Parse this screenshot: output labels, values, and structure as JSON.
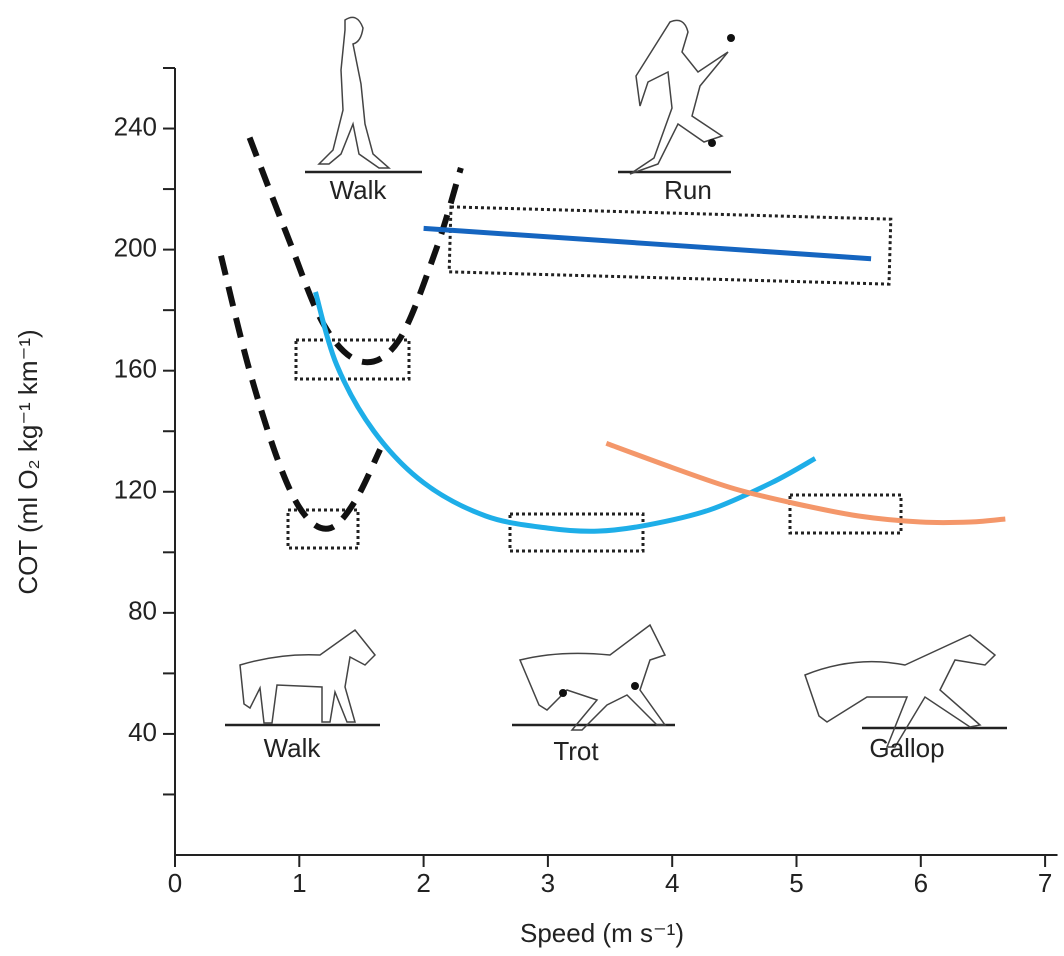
{
  "chart_data": {
    "type": "line",
    "x_label": "Speed  (m s⁻¹)",
    "y_label": "COT (ml O₂ kg⁻¹ km⁻¹)",
    "xlim": [
      0,
      7.1
    ],
    "xticks": [
      0,
      1,
      2,
      3,
      4,
      5,
      6,
      7
    ],
    "ylim": [
      0,
      260
    ],
    "yticks": [
      40,
      80,
      120,
      160,
      200,
      240
    ],
    "y_minor_ticks": [
      20,
      60,
      100,
      140,
      180,
      220,
      260
    ],
    "annotations": [
      "Walk",
      "Run",
      "Walk",
      "Trot",
      "Gallop"
    ],
    "series": [
      {
        "color": "#111111",
        "dashed": true,
        "x": [
          0.6,
          0.9,
          1.2,
          1.5,
          1.8,
          2.1,
          2.3
        ],
        "values": [
          237,
          205,
          175,
          163,
          170,
          200,
          227
        ]
      },
      {
        "color": "#111111",
        "dashed": true,
        "x": [
          0.37,
          0.6,
          0.85,
          1.05,
          1.25,
          1.45,
          1.65
        ],
        "values": [
          198,
          160,
          128,
          112,
          108,
          117,
          134
        ]
      },
      {
        "color": "#1565c0",
        "dashed": false,
        "x": [
          2.0,
          5.6
        ],
        "values": [
          207,
          197
        ]
      },
      {
        "color": "#1eaee8",
        "dashed": false,
        "x": [
          1.13,
          1.3,
          1.6,
          2.0,
          2.5,
          3.0,
          3.4,
          3.8,
          4.3,
          4.8,
          5.15
        ],
        "values": [
          186,
          162,
          140,
          123,
          112,
          108,
          107,
          109,
          114,
          123,
          131
        ]
      },
      {
        "color": "#f4976a",
        "dashed": false,
        "x": [
          3.47,
          4.0,
          4.5,
          5.0,
          5.5,
          6.0,
          6.4,
          6.68
        ],
        "values": [
          136,
          128,
          121,
          116,
          112,
          110,
          110,
          111
        ]
      }
    ]
  }
}
